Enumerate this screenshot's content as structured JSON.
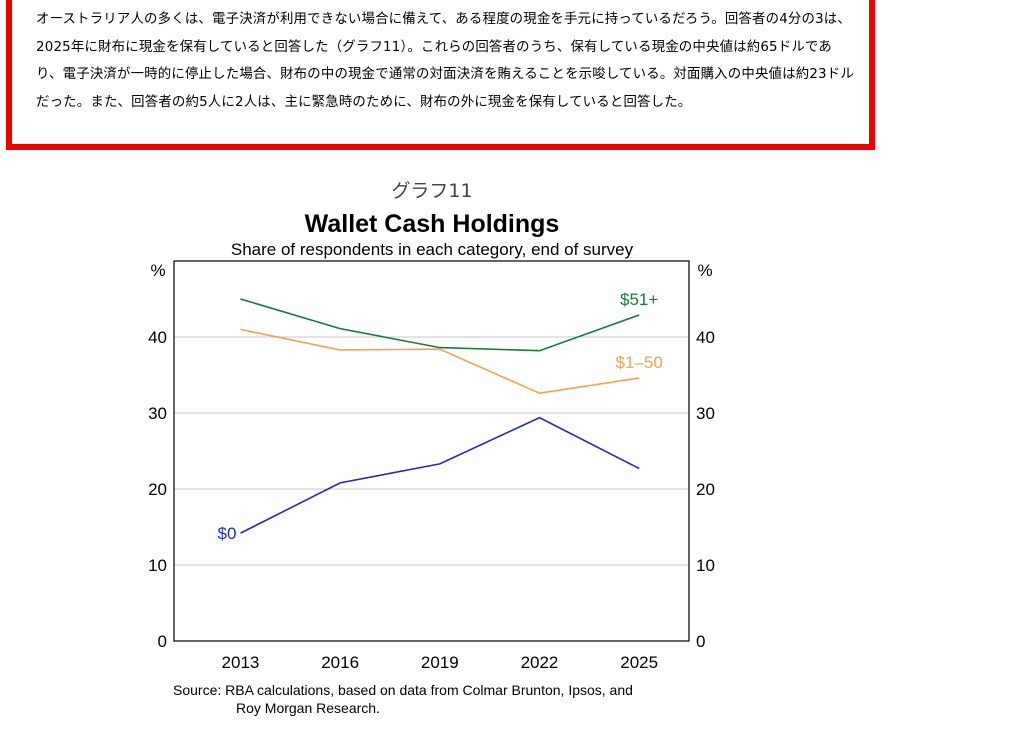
{
  "paragraph": "オーストラリア人の多くは、電子決済が利用できない場合に備えて、ある程度の現金を手元に持っているだろう。回答者の4分の3は、2025年に財布に現金を保有していると回答した（グラフ11）。これらの回答者のうち、保有している現金の中央値は約65ドルであり、電子決済が一時的に停止した場合、財布の中の現金で通常の対面決済を賄えることを示唆している。対面購入の中央値は約23ドルだった。また、回答者の約5人に2人は、主に緊急時のために、財布の外に現金を保有していると回答した。",
  "figure_label": "グラフ11",
  "source_line1": "Source:  RBA calculations, based on data from Colmar Brunton, Ipsos, and",
  "source_line2": "Roy Morgan Research.",
  "colors": {
    "highlight_border": "#f00000",
    "s51": "#1b7a3a",
    "s1_50": "#f5a04e",
    "s0": "#1f2db0",
    "grid": "#c8c8c8"
  },
  "chart_data": {
    "type": "line",
    "title": "Wallet Cash Holdings",
    "subtitle": "Share of respondents in each category, end of survey",
    "ylabel_left": "%",
    "ylabel_right": "%",
    "ylim": [
      0,
      50
    ],
    "yticks": [
      0,
      10,
      20,
      30,
      40
    ],
    "xlim": [
      2011,
      2026.5
    ],
    "xticks": [
      2013,
      2016,
      2019,
      2022,
      2025
    ],
    "grid": true,
    "series": [
      {
        "name": "$51+",
        "color": "#1b7a3a",
        "x": [
          2013,
          2016,
          2019,
          2022,
          2025
        ],
        "y": [
          45.0,
          41.1,
          38.6,
          38.2,
          42.9
        ]
      },
      {
        "name": "$1–50",
        "color": "#f5a04e",
        "x": [
          2013,
          2016,
          2019,
          2022,
          2025
        ],
        "y": [
          41.0,
          38.3,
          38.4,
          32.6,
          34.6
        ]
      },
      {
        "name": "$0",
        "color": "#1f2db0",
        "x": [
          2013,
          2016,
          2019,
          2022,
          2025
        ],
        "y": [
          14.2,
          20.8,
          23.3,
          29.4,
          22.7
        ]
      }
    ]
  }
}
